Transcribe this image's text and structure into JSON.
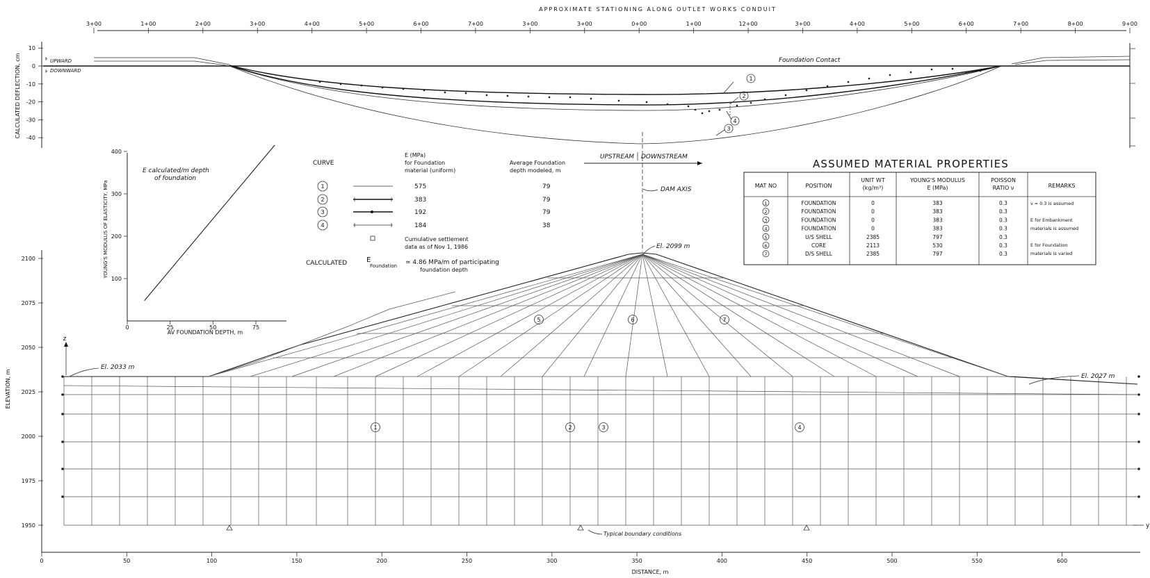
{
  "top": {
    "title": "APPROXIMATE STATIONING ALONG OUTLET WORKS CONDUIT",
    "stations": [
      "3+00",
      "1+00",
      "2+00",
      "3+00",
      "4+00",
      "5+00",
      "6+00",
      "7+00",
      "3+00",
      "3+00",
      "0+00",
      "1+00",
      "12+00",
      "3+00",
      "4+00",
      "5+00",
      "6+00",
      "7+00",
      "8+00",
      "9+00"
    ],
    "ylabel": "CALCULATED DEFLECTION, cm",
    "yticks": [
      "10",
      "0",
      "-10",
      "-20",
      "-30",
      "-40"
    ],
    "upward": "UPWARD",
    "downward": "DOWNWARD",
    "foundation_contact": "Foundation Contact",
    "curve_tags": [
      "1",
      "2",
      "4",
      "3"
    ]
  },
  "mini_chart": {
    "annotation_line1": "E calculated/m depth",
    "annotation_line2": "of foundation",
    "ylabel": "YOUNG'S MODULUS OF ELASTICITY, MPa",
    "xlabel": "AV FOUNDATION DEPTH, m",
    "xticks": [
      "0",
      "25",
      "50",
      "75"
    ],
    "yticks": [
      "100",
      "200",
      "300",
      "400"
    ]
  },
  "chart_data": {
    "type": "line",
    "title": "",
    "xlabel": "AV FOUNDATION DEPTH, m",
    "ylabel": "YOUNG'S MODULUS OF ELASTICITY, MPa",
    "xlim": [
      0,
      90
    ],
    "ylim": [
      0,
      400
    ],
    "series": [
      {
        "x": [
          10,
          86
        ],
        "y": [
          48,
          415
        ]
      }
    ]
  },
  "legend": {
    "curve_header": "CURVE",
    "e_header_1": "E (MPa)",
    "e_header_2": "for Foundation",
    "e_header_3": "material (uniform)",
    "depth_header_1": "Average Foundation",
    "depth_header_2": "depth modeled, m",
    "rows": [
      {
        "curve": "1",
        "e": "575",
        "depth": "79"
      },
      {
        "curve": "2",
        "e": "383",
        "depth": "79"
      },
      {
        "curve": "3",
        "e": "192",
        "depth": "79"
      },
      {
        "curve": "4",
        "e": "184",
        "depth": "38"
      }
    ],
    "settlement_1": "Cumulative settlement",
    "settlement_2": "data as of Nov 1, 1986",
    "calculated_label": "CALCULATED",
    "e_symbol": "E",
    "e_sub": "Foundation",
    "calc_value_1": "≃ 4.86 MPa/m of participating",
    "calc_value_2": "foundation depth"
  },
  "dam": {
    "upstream": "UPSTREAM",
    "downstream": "DOWNSTREAM",
    "axis_label": "DAM AXIS",
    "crest_label": "El. 2099 m",
    "left_label": "El. 2033 m",
    "right_label": "El. 2027 m",
    "boundary_label": "Typical boundary conditions",
    "ylabel": "ELEVATION, m",
    "yticks": [
      "2100",
      "2075",
      "2050",
      "2025",
      "2000",
      "1975",
      "1950"
    ],
    "xlabel": "DISTANCE, m",
    "xticks": [
      "0",
      "50",
      "100",
      "150",
      "200",
      "250",
      "300",
      "350",
      "400",
      "450",
      "500",
      "550",
      "600"
    ],
    "zones": [
      "1",
      "2",
      "3",
      "4",
      "5",
      "6",
      "7"
    ],
    "z_axis": "z",
    "y_axis": "y"
  },
  "properties": {
    "title": "ASSUMED MATERIAL PROPERTIES",
    "headers": [
      "MAT NO",
      "POSITION",
      "UNIT WT (kg/m³)",
      "YOUNG'S MODULUS E (MPa)",
      "POISSON RATIO ν",
      "REMARKS"
    ],
    "rows": [
      {
        "mat": "1",
        "position": "FOUNDATION",
        "unit_wt": "0",
        "modulus": "383",
        "poisson": "0.3"
      },
      {
        "mat": "2",
        "position": "FOUNDATION",
        "unit_wt": "0",
        "modulus": "383",
        "poisson": "0.3"
      },
      {
        "mat": "3",
        "position": "FOUNDATION",
        "unit_wt": "0",
        "modulus": "383",
        "poisson": "0.3"
      },
      {
        "mat": "4",
        "position": "FOUNDATION",
        "unit_wt": "0",
        "modulus": "383",
        "poisson": "0.3"
      },
      {
        "mat": "5",
        "position": "U/S SHELL",
        "unit_wt": "2385",
        "modulus": "797",
        "poisson": "0.3"
      },
      {
        "mat": "6",
        "position": "CORE",
        "unit_wt": "2113",
        "modulus": "530",
        "poisson": "0.3"
      },
      {
        "mat": "7",
        "position": "D/S SHELL",
        "unit_wt": "2385",
        "modulus": "797",
        "poisson": "0.3"
      }
    ],
    "remarks": [
      "ν = 0.3 is assumed",
      "E for Embankment",
      "materials is assumed",
      "E for Foundation",
      "materials is varied"
    ]
  }
}
